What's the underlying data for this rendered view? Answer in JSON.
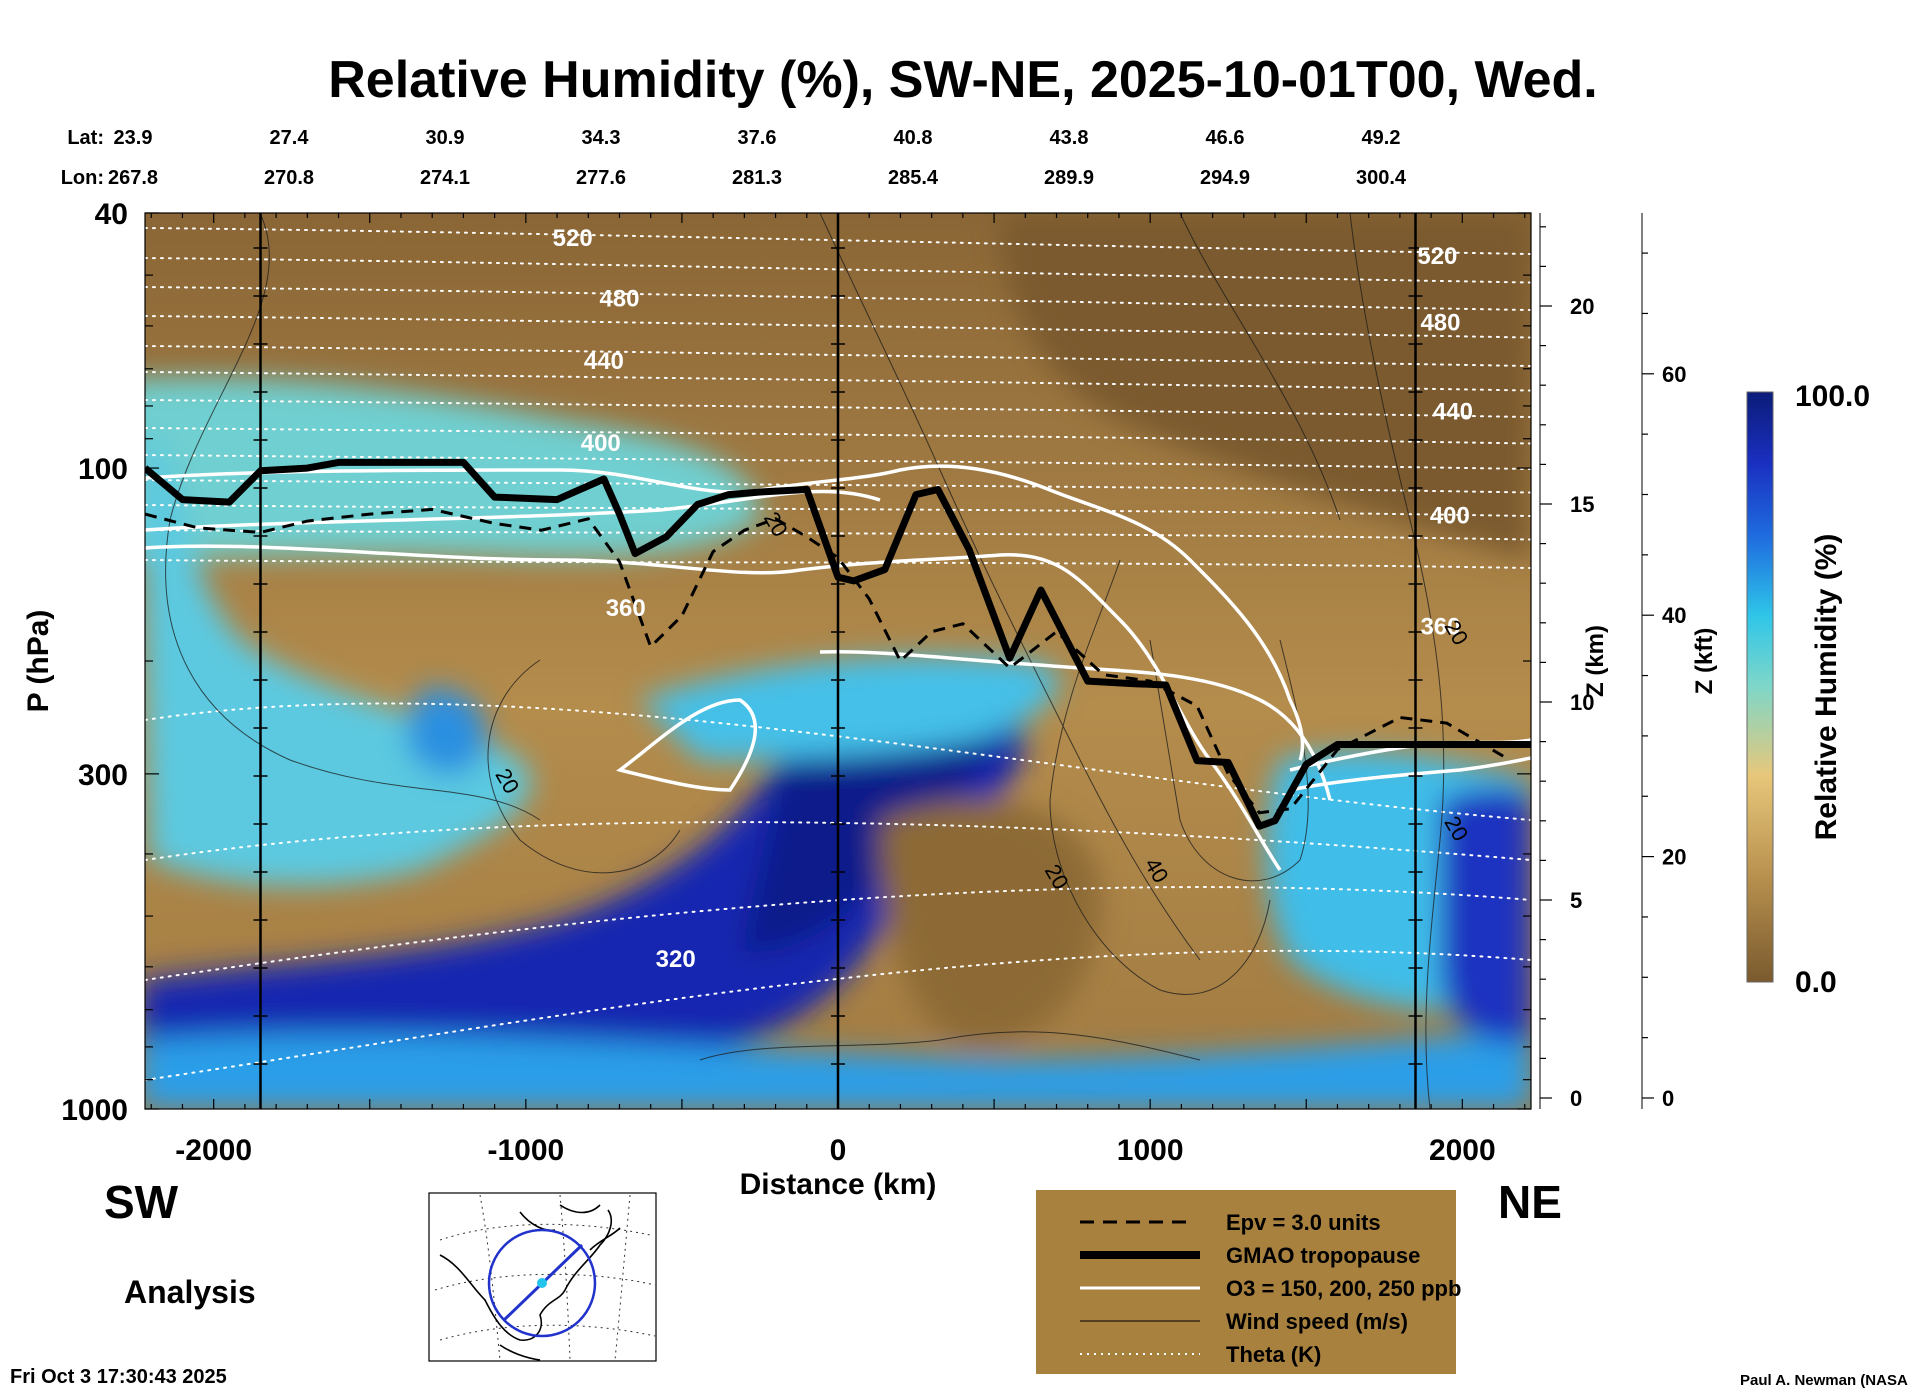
{
  "title": "Relative Humidity (%), SW-NE, 2025-10-01T00, Wed.",
  "coords": {
    "lat_label": "Lat:",
    "lon_label": "Lon:",
    "columns": [
      {
        "lat": "23.9",
        "lon": "267.8"
      },
      {
        "lat": "27.4",
        "lon": "270.8"
      },
      {
        "lat": "30.9",
        "lon": "274.1"
      },
      {
        "lat": "34.3",
        "lon": "277.6"
      },
      {
        "lat": "37.6",
        "lon": "281.3"
      },
      {
        "lat": "40.8",
        "lon": "285.4"
      },
      {
        "lat": "43.8",
        "lon": "289.9"
      },
      {
        "lat": "46.6",
        "lon": "294.9"
      },
      {
        "lat": "49.2",
        "lon": "300.4"
      }
    ]
  },
  "direction": {
    "left": "SW",
    "right": "NE"
  },
  "mode_label": "Analysis",
  "timestamp": "Fri Oct  3 17:30:43 2025",
  "credit": "Paul A. Newman (NASA",
  "colors": {
    "dry": "#8a6636",
    "moist": "#2ec4e0",
    "saturated": "#0d1f8a",
    "tropopause": "#000000",
    "ozone": "#ffffff",
    "legend_box": "#a8813f"
  },
  "legend": {
    "items": [
      {
        "label": "Epv = 3.0 units",
        "style": "dashed-black"
      },
      {
        "label": "GMAO tropopause",
        "style": "thick-black"
      },
      {
        "label": "O3 = 150, 200, 250 ppb",
        "style": "white"
      },
      {
        "label": "Wind speed (m/s)",
        "style": "thin-black"
      },
      {
        "label": "Theta (K)",
        "style": "dotted-white"
      }
    ]
  },
  "chart_data": {
    "type": "heatmap",
    "title": "Relative Humidity (%), SW-NE, 2025-10-01T00, Wed.",
    "xlabel": "Distance (km)",
    "ylabel": "P (hPa)",
    "xlim": [
      -2220,
      2220
    ],
    "x_ticks": [
      -2000,
      -1000,
      0,
      1000,
      2000
    ],
    "x_tick_labels": [
      "-2000",
      "-1000",
      "0",
      "1000",
      "2000"
    ],
    "ylim_hpa": [
      1000,
      40
    ],
    "y_scale": "log",
    "y_ticks_labeled": [
      40,
      100,
      300,
      1000
    ],
    "y_tick_labels": [
      "40",
      "100",
      "300",
      "1000"
    ],
    "z_km_axis": {
      "label": "Z (km)",
      "ticks": [
        0,
        5,
        10,
        15,
        20
      ],
      "tick_labels": [
        "0",
        "5",
        "10",
        "15",
        "20"
      ]
    },
    "z_kft_axis": {
      "label": "Z (kft)",
      "ticks": [
        0,
        20,
        40,
        60
      ],
      "tick_labels": [
        "0",
        "20",
        "40",
        "60"
      ]
    },
    "colorbar": {
      "label": "Relative Humidity (%)",
      "min": 0.0,
      "max": 100.0,
      "min_label": "0.0",
      "max_label": "100.0"
    },
    "reference_lines_km": [
      -1850,
      0,
      1850
    ],
    "tropopause_hpa": {
      "x": [
        -2220,
        -2100,
        -1950,
        -1850,
        -1700,
        -1600,
        -1400,
        -1200,
        -1100,
        -900,
        -750,
        -700,
        -650,
        -550,
        -450,
        -350,
        -250,
        -100,
        0,
        50,
        150,
        250,
        320,
        420,
        550,
        650,
        800,
        950,
        1050,
        1150,
        1250,
        1350,
        1400,
        1500,
        1600,
        1800,
        2000,
        2220
      ],
      "p": [
        100,
        112,
        113,
        101,
        100,
        98,
        98,
        98,
        111,
        112,
        104,
        118,
        136,
        128,
        114,
        110,
        109,
        108,
        148,
        150,
        144,
        110,
        108,
        134,
        198,
        155,
        215,
        217,
        218,
        286,
        288,
        362,
        355,
        290,
        270,
        270,
        270,
        270
      ]
    },
    "epv_3_hpa": {
      "x": [
        -2220,
        -2050,
        -1850,
        -1700,
        -1500,
        -1300,
        -1100,
        -950,
        -800,
        -700,
        -600,
        -500,
        -400,
        -300,
        -200,
        -100,
        0,
        100,
        200,
        300,
        400,
        550,
        700,
        850,
        1000,
        1150,
        1250,
        1350,
        1450,
        1600,
        1800,
        1950,
        2150
      ],
      "p": [
        118,
        124,
        126,
        121,
        118,
        116,
        122,
        125,
        120,
        140,
        190,
        170,
        135,
        125,
        120,
        128,
        138,
        160,
        200,
        180,
        175,
        205,
        180,
        210,
        215,
        235,
        300,
        345,
        340,
        275,
        245,
        250,
        285
      ]
    },
    "theta_labels_K": [
      {
        "value": "520",
        "x": -850,
        "p": 45
      },
      {
        "value": "480",
        "x": -700,
        "p": 56
      },
      {
        "value": "440",
        "x": -750,
        "p": 70
      },
      {
        "value": "400",
        "x": -760,
        "p": 94
      },
      {
        "value": "360",
        "x": -680,
        "p": 170
      },
      {
        "value": "320",
        "x": -520,
        "p": 600
      },
      {
        "value": "520",
        "x": 1920,
        "p": 48
      },
      {
        "value": "480",
        "x": 1930,
        "p": 61
      },
      {
        "value": "440",
        "x": 1970,
        "p": 84
      },
      {
        "value": "400",
        "x": 1960,
        "p": 122
      },
      {
        "value": "360",
        "x": 1930,
        "p": 182
      }
    ],
    "wind_labels_ms": [
      {
        "value": "20",
        "x": -1080,
        "p": 312
      },
      {
        "value": "20",
        "x": -220,
        "p": 124
      },
      {
        "value": "20",
        "x": 680,
        "p": 440
      },
      {
        "value": "40",
        "x": 1000,
        "p": 430
      },
      {
        "value": "20",
        "x": 1960,
        "p": 183
      },
      {
        "value": "20",
        "x": 1960,
        "p": 370
      }
    ]
  }
}
